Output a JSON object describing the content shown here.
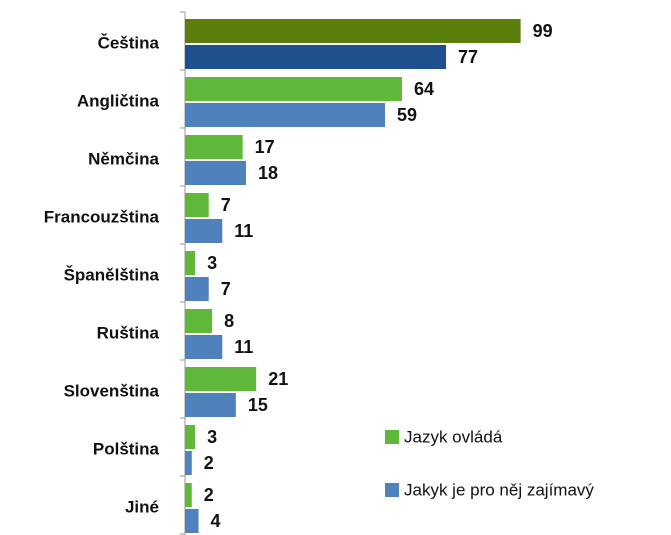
{
  "chart_data": {
    "type": "bar",
    "orientation": "horizontal",
    "categories": [
      "Čeština",
      "Angličtina",
      "Němčina",
      "Francouzština",
      "Španělština",
      "Ruština",
      "Slovenština",
      "Polština",
      "Jiné"
    ],
    "series": [
      {
        "name": "Jazyk ovládá",
        "color": "#5fb83a",
        "colors": [
          "#5a7f0c",
          "#5fb83a",
          "#5fb83a",
          "#5fb83a",
          "#5fb83a",
          "#5fb83a",
          "#5fb83a",
          "#5fb83a",
          "#5fb83a"
        ],
        "values": [
          99,
          64,
          17,
          7,
          3,
          8,
          21,
          3,
          2
        ]
      },
      {
        "name": "Jakyk je pro něj zajímavý",
        "color": "#4f81bd",
        "colors": [
          "#1f4f8c",
          "#4f81bd",
          "#4f81bd",
          "#4f81bd",
          "#4f81bd",
          "#4f81bd",
          "#4f81bd",
          "#4f81bd",
          "#4f81bd"
        ],
        "values": [
          77,
          59,
          18,
          11,
          7,
          11,
          15,
          2,
          4
        ]
      }
    ],
    "xlim": [
      0,
      100
    ],
    "legend": "lower right"
  }
}
